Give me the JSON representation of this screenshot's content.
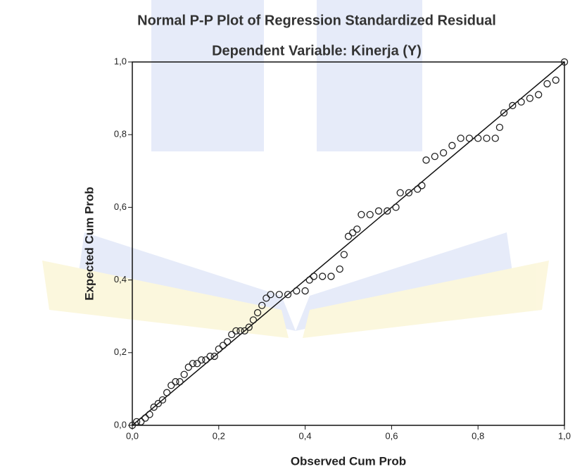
{
  "chart_data": {
    "type": "scatter",
    "title": "Normal P-P Plot of Regression Standardized Residual",
    "subtitle": "Dependent Variable: Kinerja (Y)",
    "x_label": "Observed Cum Prob",
    "y_label": "Expected Cum Prob",
    "x": [
      0.0,
      0.01,
      0.02,
      0.03,
      0.04,
      0.05,
      0.06,
      0.07,
      0.08,
      0.09,
      0.1,
      0.11,
      0.12,
      0.13,
      0.14,
      0.15,
      0.16,
      0.17,
      0.18,
      0.19,
      0.2,
      0.21,
      0.22,
      0.23,
      0.24,
      0.25,
      0.26,
      0.27,
      0.28,
      0.29,
      0.3,
      0.31,
      0.32,
      0.34,
      0.36,
      0.38,
      0.4,
      0.41,
      0.42,
      0.44,
      0.46,
      0.48,
      0.49,
      0.5,
      0.51,
      0.52,
      0.53,
      0.55,
      0.57,
      0.59,
      0.61,
      0.62,
      0.64,
      0.66,
      0.67,
      0.68,
      0.7,
      0.72,
      0.74,
      0.76,
      0.78,
      0.8,
      0.82,
      0.84,
      0.85,
      0.86,
      0.88,
      0.9,
      0.92,
      0.94,
      0.96,
      0.98,
      1.0
    ],
    "values": [
      0.0,
      0.01,
      0.01,
      0.02,
      0.03,
      0.05,
      0.06,
      0.07,
      0.09,
      0.11,
      0.12,
      0.12,
      0.14,
      0.16,
      0.17,
      0.17,
      0.18,
      0.18,
      0.19,
      0.19,
      0.21,
      0.22,
      0.23,
      0.25,
      0.26,
      0.26,
      0.26,
      0.27,
      0.29,
      0.31,
      0.33,
      0.35,
      0.36,
      0.36,
      0.36,
      0.37,
      0.37,
      0.4,
      0.41,
      0.41,
      0.41,
      0.43,
      0.47,
      0.52,
      0.53,
      0.54,
      0.58,
      0.58,
      0.59,
      0.59,
      0.6,
      0.64,
      0.64,
      0.65,
      0.66,
      0.73,
      0.74,
      0.75,
      0.77,
      0.79,
      0.79,
      0.79,
      0.79,
      0.79,
      0.82,
      0.86,
      0.88,
      0.89,
      0.9,
      0.91,
      0.94,
      0.95,
      1.0
    ],
    "color": "#222222",
    "xlim": [
      0,
      1
    ],
    "ylim": [
      0,
      1
    ],
    "xticks": [
      {
        "value": 0,
        "label": "0,0"
      },
      {
        "value": 0.2,
        "label": "0,2"
      },
      {
        "value": 0.4,
        "label": "0,4"
      },
      {
        "value": 0.6,
        "label": "0,6"
      },
      {
        "value": 0.8,
        "label": "0,8"
      },
      {
        "value": 1,
        "label": "1,0"
      }
    ],
    "yticks": [
      {
        "value": 0,
        "label": "0,0"
      },
      {
        "value": 0.2,
        "label": "0,2"
      },
      {
        "value": 0.4,
        "label": "0,4"
      },
      {
        "value": 0.6,
        "label": "0,6"
      },
      {
        "value": 0.8,
        "label": "0,8"
      },
      {
        "value": 1,
        "label": "1,0"
      }
    ]
  }
}
